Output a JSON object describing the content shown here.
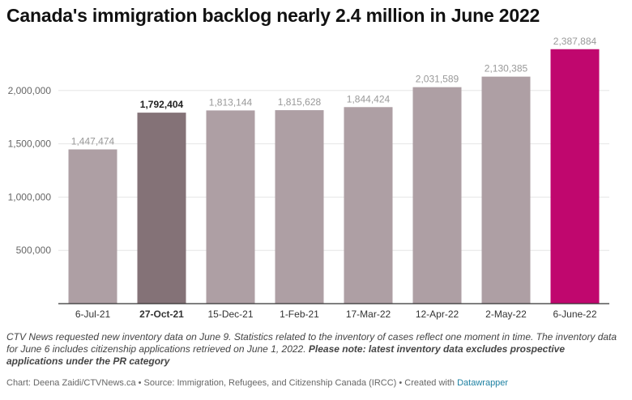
{
  "title": "Canada's immigration backlog nearly 2.4 million in June 2022",
  "notes": {
    "text": "CTV News requested new inventory data on June 9. Statistics related to the inventory of cases reflect one moment in time. The inventory data for June 6 includes citizenship applications retrieved on June 1, 2022.",
    "bold_text": "Please note: latest inventory data excludes prospective applications under the PR category"
  },
  "footer": {
    "text": "Chart: Deena Zaidi/CTVNews.ca • Source: Immigration, Refugees, and Citizenship Canada (IRCC) • Created with",
    "link": "Datawrapper"
  },
  "chart_data": {
    "type": "bar",
    "title": "Canada's immigration backlog nearly 2.4 million in June 2022",
    "xlabel": "",
    "ylabel": "",
    "categories": [
      "6-Jul-21",
      "27-Oct-21",
      "15-Dec-21",
      "1-Feb-21",
      "17-Mar-22",
      "12-Apr-22",
      "2-May-22",
      "6-June-22"
    ],
    "values": [
      1447474,
      1792404,
      1813144,
      1815628,
      1844424,
      2031589,
      2130385,
      2387884
    ],
    "labels": [
      "1,447,474",
      "1,792,404",
      "1,813,144",
      "1,815,628",
      "1,844,424",
      "2,031,589",
      "2,130,385",
      "2,387,884"
    ],
    "highlight": [
      false,
      true,
      false,
      false,
      false,
      false,
      false,
      true
    ],
    "ylim": [
      0,
      2500000
    ],
    "yticks": [
      500000,
      1000000,
      1500000,
      2000000
    ],
    "ytick_labels": [
      "500,000",
      "1,000,000",
      "1,500,000",
      "2,000,000"
    ],
    "grid": true,
    "colors": {
      "default": "#ae9fa4",
      "highlight_dark": "#847277",
      "highlight_accent": "#c0076e",
      "grid": "#e6e6e6",
      "axis": "#333333",
      "label": "#999999",
      "label_bold": "#222222"
    }
  }
}
